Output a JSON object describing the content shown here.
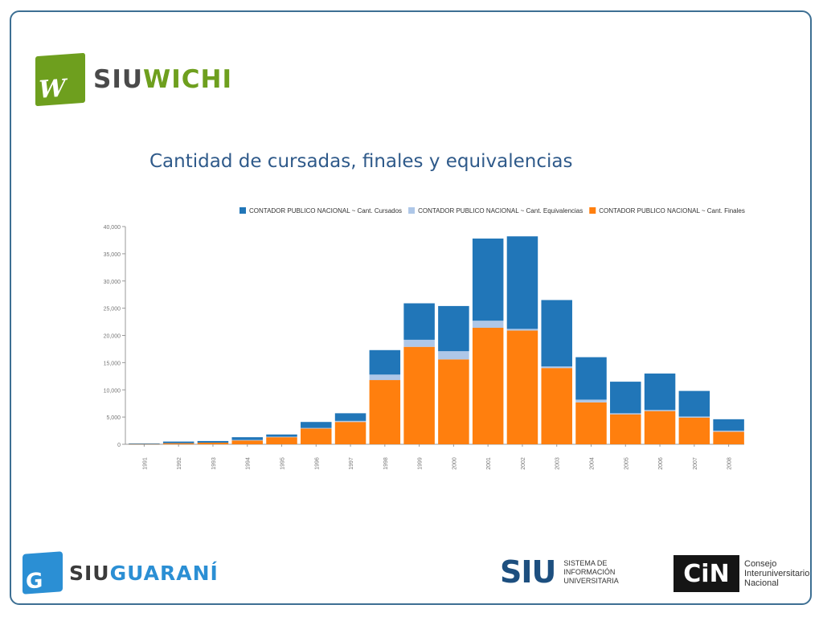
{
  "logos": {
    "siuwichi": {
      "mark": "W",
      "part1": "SIU",
      "part2": "WICHI"
    },
    "siuguarani": {
      "mark": "G",
      "part1": "SIU",
      "part2": "GUARANÍ"
    },
    "siu": {
      "mark": "SIU",
      "text": "SISTEMA DE INFORMACIÓN UNIVERSITARIA"
    },
    "cin": {
      "mark": "CiN",
      "text": "Consejo Interuniversitario Nacional"
    }
  },
  "colors": {
    "cursados": "#2176b8",
    "equivalencias": "#aec7e8",
    "finales": "#ff7f0e",
    "axis": "#999999",
    "tick_text": "#777777"
  },
  "chart_data": {
    "type": "bar",
    "stacked": true,
    "title": "Cantidad de cursadas, finales y equivalencias",
    "categories": [
      "1991",
      "1992",
      "1993",
      "1994",
      "1995",
      "1996",
      "1997",
      "1998",
      "1999",
      "2000",
      "2001",
      "2002",
      "2003",
      "2004",
      "2005",
      "2006",
      "2007",
      "2008"
    ],
    "series": [
      {
        "name": "CONTADOR PUBLICO NACIONAL ~ Cant. Finales",
        "color_key": "finales",
        "values": [
          50,
          200,
          300,
          700,
          1300,
          2900,
          4100,
          11800,
          17900,
          15600,
          21400,
          20900,
          14000,
          7700,
          5500,
          6100,
          4900,
          2300
        ]
      },
      {
        "name": "CONTADOR PUBLICO NACIONAL ~ Cant. Equivalencias",
        "color_key": "equivalencias",
        "values": [
          0,
          0,
          0,
          100,
          100,
          100,
          200,
          1000,
          1300,
          1500,
          1300,
          300,
          300,
          500,
          200,
          200,
          200,
          200
        ]
      },
      {
        "name": "CONTADOR PUBLICO NACIONAL ~ Cant. Cursados",
        "color_key": "cursados",
        "values": [
          100,
          300,
          300,
          500,
          400,
          1100,
          1400,
          4500,
          6700,
          8300,
          15100,
          17000,
          12200,
          7800,
          5800,
          6700,
          4700,
          2100
        ]
      }
    ],
    "legend_order": [
      "CONTADOR PUBLICO NACIONAL ~ Cant. Cursados",
      "CONTADOR PUBLICO NACIONAL ~ Cant. Equivalencias",
      "CONTADOR PUBLICO NACIONAL ~ Cant. Finales"
    ],
    "legend_placement": "top",
    "ylim": [
      0,
      40000
    ],
    "yticks": [
      0,
      5000,
      10000,
      15000,
      20000,
      25000,
      30000,
      35000,
      40000
    ],
    "ytick_labels": [
      "0",
      "5,000",
      "10,000",
      "15,000",
      "20,000",
      "25,000",
      "30,000",
      "35,000",
      "40,000"
    ],
    "grid": false
  }
}
